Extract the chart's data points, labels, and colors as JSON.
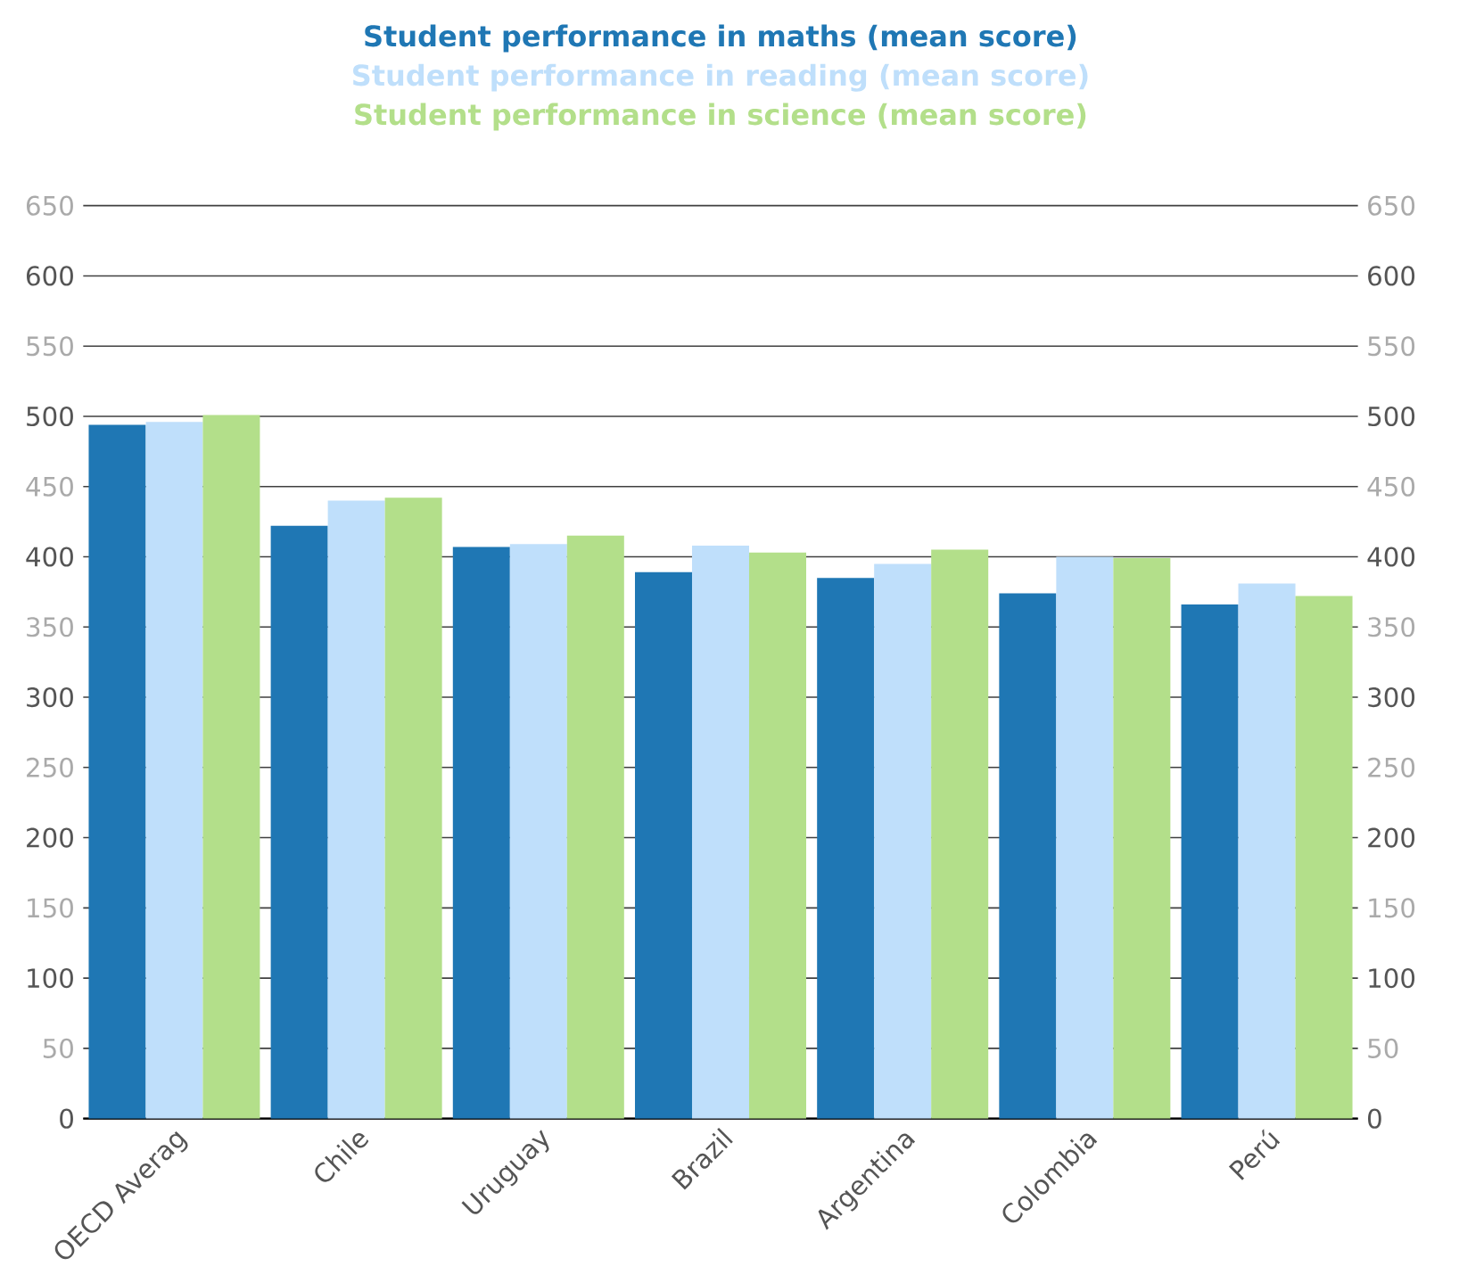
{
  "chart_data": {
    "type": "bar",
    "categories": [
      "OECD Averag",
      "Chile",
      "Uruguay",
      "Brazil",
      "Argentina",
      "Colombia",
      "Perú"
    ],
    "series": [
      {
        "name": "Student performance in maths (mean score)",
        "color": "#1f77b4",
        "values": [
          494,
          422,
          407,
          389,
          385,
          374,
          366
        ]
      },
      {
        "name": "Student performance in reading (mean score)",
        "color": "#bfdffb",
        "values": [
          496,
          440,
          409,
          408,
          395,
          400,
          381
        ]
      },
      {
        "name": "Student performance in science (mean score)",
        "color": "#b3df8a",
        "values": [
          501,
          442,
          415,
          403,
          405,
          399,
          372
        ]
      }
    ],
    "ylim": [
      0,
      650
    ],
    "yticks": [
      0,
      50,
      100,
      150,
      200,
      250,
      300,
      350,
      400,
      450,
      500,
      550,
      600,
      650
    ],
    "y2lim": [
      0,
      650
    ],
    "y2ticks": [
      0,
      50,
      100,
      150,
      200,
      250,
      300,
      350,
      400,
      450,
      500,
      550,
      600,
      650
    ],
    "grid": "y",
    "legend": "top"
  }
}
